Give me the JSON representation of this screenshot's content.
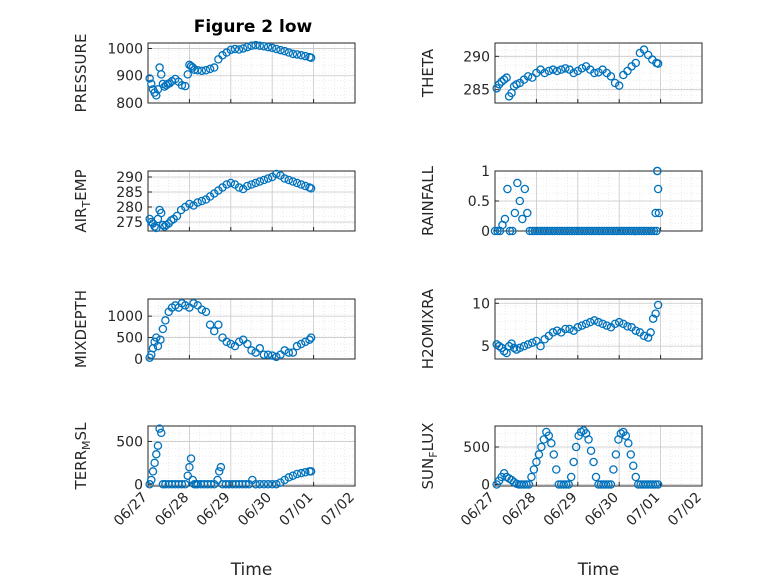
{
  "figure_title": "Figure 2 low",
  "colors": {
    "marker": "#0072BD",
    "axis": "#262626",
    "grid": "#dcdcdc"
  },
  "chart_data": [
    {
      "type": "scatter",
      "title": "Figure 2 low",
      "ylabel": "PRESSURE",
      "xlim": [
        0,
        5
      ],
      "ylim": [
        800,
        1020
      ],
      "yticks": [
        800,
        900,
        1000
      ],
      "grid": true,
      "xticklabels_shown": false,
      "x": [
        0.04,
        0.08,
        0.12,
        0.16,
        0.2,
        0.24,
        0.28,
        0.32,
        0.36,
        0.4,
        0.44,
        0.48,
        0.52,
        0.58,
        0.66,
        0.74,
        0.82,
        0.9,
        0.96,
        1.0,
        1.04,
        1.08,
        1.12,
        1.2,
        1.3,
        1.4,
        1.5,
        1.6,
        1.7,
        1.8,
        1.9,
        2.0,
        2.1,
        2.2,
        2.3,
        2.4,
        2.5,
        2.6,
        2.7,
        2.8,
        2.9,
        3.0,
        3.1,
        3.2,
        3.3,
        3.4,
        3.5,
        3.6,
        3.7,
        3.8,
        3.9,
        3.94
      ],
      "y": [
        890,
        870,
        850,
        838,
        828,
        850,
        930,
        905,
        870,
        860,
        865,
        870,
        872,
        880,
        888,
        878,
        865,
        862,
        905,
        940,
        935,
        930,
        922,
        920,
        918,
        920,
        925,
        930,
        960,
        975,
        985,
        995,
        998,
        996,
        1000,
        1005,
        1010,
        1012,
        1010,
        1008,
        1005,
        1002,
        998,
        994,
        990,
        985,
        980,
        978,
        975,
        972,
        968,
        966
      ]
    },
    {
      "type": "scatter",
      "ylabel": "THETA",
      "xlim": [
        0,
        5
      ],
      "ylim": [
        283,
        292
      ],
      "yticks": [
        285,
        290
      ],
      "grid": true,
      "xticklabels_shown": false,
      "x": [
        0.04,
        0.1,
        0.16,
        0.22,
        0.28,
        0.34,
        0.4,
        0.46,
        0.52,
        0.6,
        0.7,
        0.8,
        0.9,
        1.0,
        1.1,
        1.2,
        1.3,
        1.4,
        1.5,
        1.6,
        1.7,
        1.8,
        1.9,
        2.0,
        2.1,
        2.2,
        2.3,
        2.4,
        2.5,
        2.6,
        2.7,
        2.8,
        2.9,
        3.0,
        3.1,
        3.2,
        3.3,
        3.4,
        3.5,
        3.6,
        3.7,
        3.8,
        3.9,
        3.94
      ],
      "y": [
        285.2,
        285.8,
        286.2,
        286.5,
        286.8,
        284.0,
        284.5,
        285.5,
        285.8,
        286.0,
        286.5,
        287.0,
        286.8,
        287.5,
        288.0,
        287.5,
        287.8,
        288.0,
        287.8,
        288.0,
        288.2,
        288.0,
        287.5,
        287.8,
        288.2,
        288.5,
        288.0,
        287.5,
        287.6,
        288.0,
        287.5,
        287.0,
        286.0,
        285.6,
        287.2,
        287.8,
        288.5,
        289.0,
        290.5,
        291.0,
        290.2,
        289.5,
        289.0,
        288.9
      ]
    },
    {
      "type": "scatter",
      "ylabel": "AIR_TEMP",
      "xlim": [
        0,
        5
      ],
      "ylim": [
        272,
        292
      ],
      "yticks": [
        275,
        280,
        285,
        290
      ],
      "grid": true,
      "xticklabels_shown": false,
      "x": [
        0.04,
        0.08,
        0.12,
        0.16,
        0.2,
        0.24,
        0.28,
        0.32,
        0.36,
        0.4,
        0.44,
        0.5,
        0.56,
        0.62,
        0.7,
        0.8,
        0.9,
        1.0,
        1.1,
        1.2,
        1.3,
        1.4,
        1.5,
        1.6,
        1.7,
        1.8,
        1.9,
        2.0,
        2.1,
        2.2,
        2.3,
        2.4,
        2.5,
        2.6,
        2.7,
        2.8,
        2.9,
        3.0,
        3.1,
        3.2,
        3.3,
        3.4,
        3.5,
        3.6,
        3.7,
        3.8,
        3.9,
        3.94
      ],
      "y": [
        276,
        275,
        274.5,
        273.5,
        273,
        276,
        279,
        278,
        274,
        273.5,
        274,
        274.5,
        275.5,
        276,
        277,
        279,
        280,
        281,
        280.5,
        281.5,
        282,
        282.5,
        283.5,
        284.5,
        285.5,
        286.5,
        287.5,
        288,
        287.5,
        286.5,
        286,
        287,
        287.5,
        288,
        288.5,
        289,
        289.5,
        290,
        291,
        290.5,
        289.5,
        289,
        288.5,
        288,
        287.5,
        287,
        286.5,
        286.2
      ]
    },
    {
      "type": "scatter",
      "ylabel": "RAINFALL",
      "xlim": [
        0,
        5
      ],
      "ylim": [
        0,
        1
      ],
      "yticks": [
        0,
        0.5,
        1
      ],
      "grid": true,
      "xticklabels_shown": false,
      "x": [
        0.0,
        0.06,
        0.12,
        0.18,
        0.24,
        0.3,
        0.36,
        0.42,
        0.48,
        0.54,
        0.6,
        0.66,
        0.72,
        0.78,
        0.84,
        0.9,
        0.96,
        1.02,
        1.08,
        1.14,
        1.2,
        1.26,
        1.32,
        1.38,
        1.44,
        1.5,
        1.56,
        1.62,
        1.68,
        1.74,
        1.8,
        1.86,
        1.92,
        1.98,
        2.04,
        2.1,
        2.16,
        2.22,
        2.28,
        2.34,
        2.4,
        2.46,
        2.52,
        2.58,
        2.64,
        2.7,
        2.76,
        2.82,
        2.88,
        2.94,
        3.0,
        3.06,
        3.12,
        3.18,
        3.24,
        3.3,
        3.36,
        3.42,
        3.48,
        3.54,
        3.6,
        3.66,
        3.72,
        3.78,
        3.84,
        3.9,
        3.94,
        3.92,
        3.96,
        3.88,
        3.92
      ],
      "y": [
        0,
        0,
        0,
        0.1,
        0.2,
        0.7,
        0,
        0,
        0.3,
        0.8,
        0.5,
        0.2,
        0.7,
        0.3,
        0,
        0,
        0,
        0,
        0,
        0,
        0,
        0,
        0,
        0,
        0,
        0,
        0,
        0,
        0,
        0,
        0,
        0,
        0,
        0,
        0,
        0,
        0,
        0,
        0,
        0,
        0,
        0,
        0,
        0,
        0,
        0,
        0,
        0,
        0,
        0,
        0,
        0,
        0,
        0,
        0,
        0,
        0,
        0,
        0,
        0,
        0,
        0,
        0,
        0,
        0,
        0,
        0.7,
        1.0,
        0.3,
        0.3,
        1.0
      ]
    },
    {
      "type": "scatter",
      "ylabel": "MIXDEPTH",
      "xlim": [
        0,
        5
      ],
      "ylim": [
        0,
        1400
      ],
      "yticks": [
        0,
        500,
        1000
      ],
      "grid": true,
      "xticklabels_shown": false,
      "x": [
        0.04,
        0.08,
        0.12,
        0.16,
        0.2,
        0.24,
        0.3,
        0.36,
        0.42,
        0.5,
        0.58,
        0.66,
        0.74,
        0.82,
        0.9,
        1.0,
        1.1,
        1.2,
        1.3,
        1.4,
        1.5,
        1.6,
        1.7,
        1.8,
        1.9,
        2.0,
        2.1,
        2.2,
        2.3,
        2.4,
        2.5,
        2.6,
        2.7,
        2.8,
        2.9,
        3.0,
        3.1,
        3.2,
        3.3,
        3.4,
        3.5,
        3.6,
        3.7,
        3.8,
        3.9,
        3.94
      ],
      "y": [
        30,
        100,
        250,
        400,
        500,
        300,
        450,
        700,
        900,
        1100,
        1200,
        1250,
        1200,
        1300,
        1250,
        1200,
        1300,
        1250,
        1150,
        1100,
        800,
        650,
        800,
        500,
        400,
        350,
        300,
        400,
        450,
        350,
        200,
        150,
        250,
        100,
        100,
        80,
        50,
        100,
        200,
        150,
        150,
        300,
        350,
        400,
        450,
        500
      ]
    },
    {
      "type": "scatter",
      "ylabel": "H2OMIXRA",
      "xlim": [
        0,
        5
      ],
      "ylim": [
        3.5,
        10.5
      ],
      "yticks": [
        5,
        10
      ],
      "grid": true,
      "xticklabels_shown": false,
      "x": [
        0.04,
        0.1,
        0.16,
        0.22,
        0.28,
        0.34,
        0.4,
        0.46,
        0.52,
        0.6,
        0.7,
        0.8,
        0.9,
        1.0,
        1.1,
        1.2,
        1.3,
        1.4,
        1.5,
        1.6,
        1.7,
        1.8,
        1.9,
        2.0,
        2.1,
        2.2,
        2.3,
        2.4,
        2.5,
        2.6,
        2.7,
        2.8,
        2.9,
        3.0,
        3.1,
        3.2,
        3.3,
        3.4,
        3.5,
        3.6,
        3.7,
        3.76,
        3.82,
        3.88,
        3.94
      ],
      "y": [
        5.2,
        5.0,
        4.8,
        4.4,
        4.2,
        5.0,
        5.3,
        4.8,
        4.6,
        4.8,
        5.0,
        5.2,
        5.4,
        5.6,
        5.0,
        5.8,
        6.2,
        6.6,
        6.8,
        6.6,
        7.0,
        7.0,
        6.8,
        7.2,
        7.4,
        7.6,
        7.8,
        8.0,
        7.8,
        7.6,
        7.4,
        7.2,
        7.6,
        7.8,
        7.6,
        7.3,
        7.2,
        6.8,
        6.6,
        6.2,
        6.0,
        6.6,
        8.2,
        8.8,
        9.8
      ]
    },
    {
      "type": "scatter",
      "ylabel": "TERR_MSL",
      "xlim": [
        0,
        5
      ],
      "ylim": [
        -20,
        680
      ],
      "yticks": [
        0,
        500
      ],
      "xticks": [
        0,
        1,
        2,
        3,
        4,
        5
      ],
      "xticklabels": [
        "06/27",
        "06/28",
        "06/29",
        "06/30",
        "07/01",
        "07/02"
      ],
      "xlabel": "Time",
      "grid": true,
      "x": [
        0.04,
        0.08,
        0.12,
        0.16,
        0.2,
        0.24,
        0.28,
        0.32,
        0.36,
        0.42,
        0.5,
        0.58,
        0.66,
        0.74,
        0.82,
        0.9,
        0.96,
        1.0,
        1.04,
        1.08,
        1.12,
        1.16,
        1.2,
        1.28,
        1.36,
        1.44,
        1.52,
        1.6,
        1.68,
        1.72,
        1.76,
        1.8,
        1.88,
        1.96,
        2.04,
        2.12,
        2.2,
        2.28,
        2.36,
        2.44,
        2.52,
        2.6,
        2.7,
        2.8,
        2.9,
        3.0,
        3.1,
        3.2,
        3.3,
        3.4,
        3.5,
        3.6,
        3.7,
        3.8,
        3.9,
        3.94
      ],
      "y": [
        0,
        50,
        150,
        250,
        350,
        450,
        650,
        600,
        0,
        0,
        0,
        0,
        0,
        0,
        0,
        0,
        100,
        200,
        300,
        50,
        0,
        0,
        0,
        0,
        0,
        0,
        0,
        0,
        50,
        150,
        200,
        0,
        0,
        0,
        0,
        0,
        0,
        0,
        0,
        0,
        50,
        0,
        0,
        0,
        0,
        0,
        0,
        20,
        50,
        80,
        100,
        120,
        130,
        140,
        150,
        150
      ]
    },
    {
      "type": "scatter",
      "ylabel": "SUN_FLUX",
      "xlim": [
        0,
        5
      ],
      "ylim": [
        -20,
        780
      ],
      "yticks": [
        0,
        500
      ],
      "xticks": [
        0,
        1,
        2,
        3,
        4,
        5
      ],
      "xticklabels": [
        "06/27",
        "06/28",
        "06/29",
        "06/30",
        "07/01",
        "07/02"
      ],
      "xlabel": "Time",
      "grid": true,
      "x": [
        0.04,
        0.1,
        0.16,
        0.22,
        0.28,
        0.34,
        0.4,
        0.46,
        0.52,
        0.58,
        0.64,
        0.7,
        0.76,
        0.82,
        0.88,
        0.94,
        1.0,
        1.06,
        1.12,
        1.18,
        1.24,
        1.3,
        1.36,
        1.42,
        1.48,
        1.54,
        1.6,
        1.66,
        1.72,
        1.78,
        1.84,
        1.9,
        1.96,
        2.02,
        2.08,
        2.14,
        2.2,
        2.26,
        2.32,
        2.38,
        2.44,
        2.5,
        2.56,
        2.62,
        2.68,
        2.74,
        2.8,
        2.86,
        2.92,
        2.98,
        3.04,
        3.1,
        3.16,
        3.22,
        3.28,
        3.34,
        3.4,
        3.46,
        3.52,
        3.58,
        3.64,
        3.7,
        3.76,
        3.82,
        3.88,
        3.94
      ],
      "y": [
        0,
        50,
        100,
        150,
        100,
        80,
        60,
        30,
        10,
        0,
        0,
        0,
        0,
        0,
        100,
        200,
        300,
        400,
        500,
        600,
        700,
        650,
        550,
        400,
        200,
        0,
        0,
        0,
        0,
        0,
        100,
        300,
        500,
        650,
        700,
        720,
        680,
        600,
        450,
        300,
        100,
        0,
        0,
        0,
        0,
        0,
        0,
        200,
        400,
        600,
        680,
        700,
        650,
        550,
        400,
        250,
        100,
        0,
        0,
        0,
        0,
        0,
        0,
        0,
        0,
        0
      ]
    }
  ]
}
